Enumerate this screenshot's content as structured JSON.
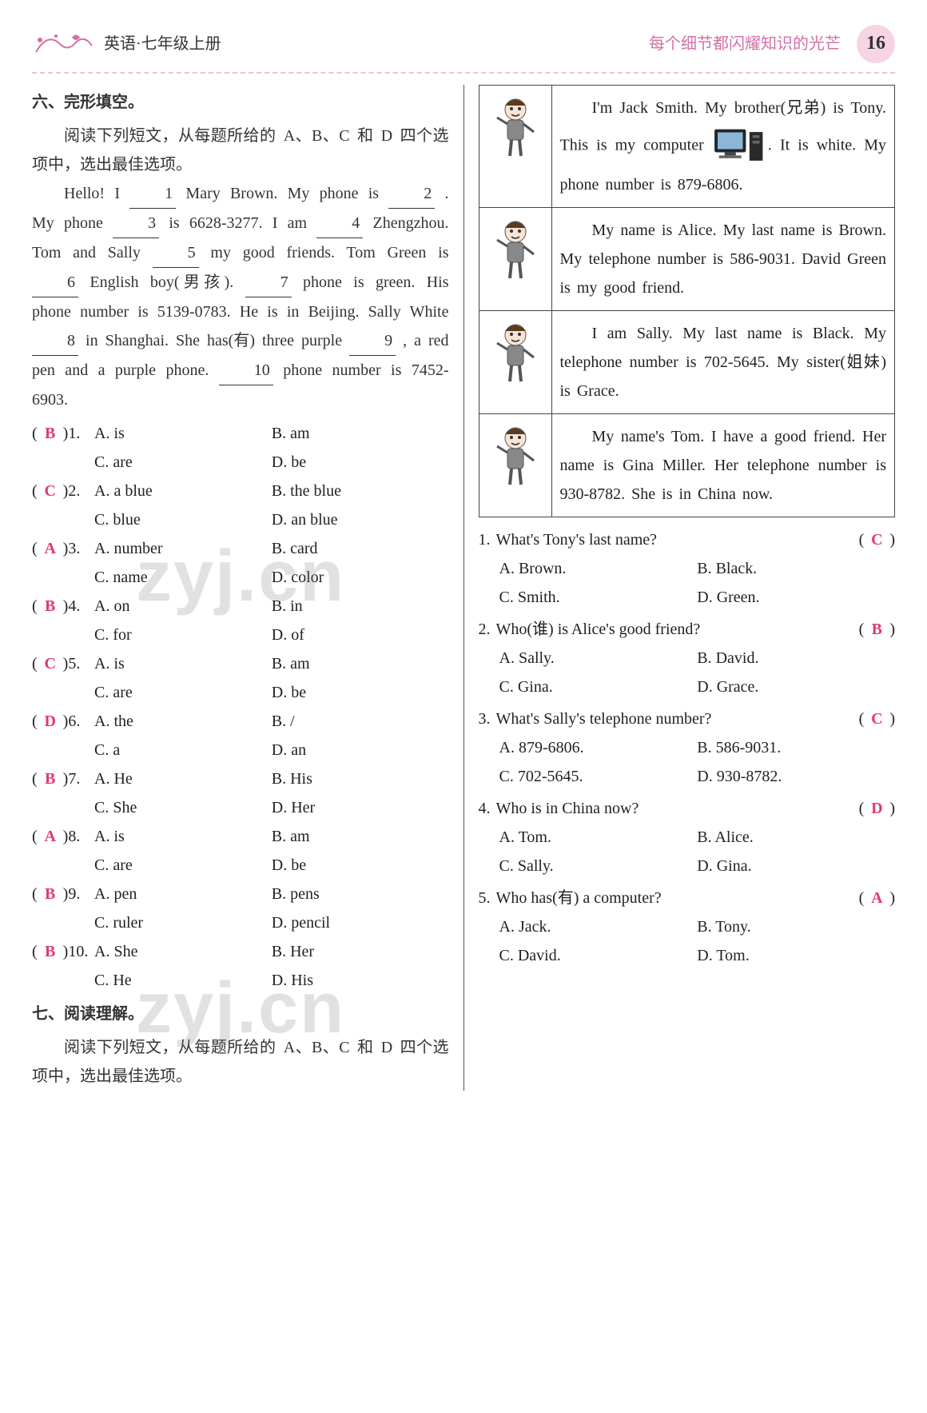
{
  "header": {
    "title": "英语·七年级上册",
    "slogan": "每个细节都闪耀知识的光芒",
    "page_number": "16",
    "flourish_color": "#d46fa9",
    "dash_color": "#efc1d8",
    "badge_bg": "#f6d4e4"
  },
  "answer_color": "#e23a6e",
  "watermark_text": "zyj.cn",
  "cloze": {
    "section_title": "六、完形填空。",
    "directions": "阅读下列短文，从每题所给的 A、B、C 和 D 四个选项中，选出最佳选项。",
    "passage_prefix": "Hello! I ",
    "passage_parts": {
      "p1a": "Hello! I ",
      "b1": "1",
      "p1b": " Mary Brown. My phone is ",
      "b2": "2",
      "p2a": ". My phone ",
      "b3": "3",
      "p2b": " is 6628-3277. I am ",
      "b4": "4",
      "p3a": " Zhengzhou. Tom and Sally ",
      "b5": "5",
      "p3b": " my good friends. Tom Green is ",
      "b6": "6",
      "p3c": " English boy(男孩). ",
      "b7": "7",
      "p4a": " phone is green. His phone number is 5139-0783. He is in Beijing. Sally White ",
      "b8": "8",
      "p4b": " in Shanghai. She has(有) three purple ",
      "b9": "9",
      "p4c": ", a red pen and a purple phone. ",
      "b10": "10",
      "p4d": " phone number is 7452-6903."
    },
    "questions": [
      {
        "answer": "B",
        "num": "1",
        "A": "A. is",
        "B": "B. am",
        "C": "C. are",
        "D": "D. be"
      },
      {
        "answer": "C",
        "num": "2",
        "A": "A. a blue",
        "B": "B. the blue",
        "C": "C. blue",
        "D": "D. an blue"
      },
      {
        "answer": "A",
        "num": "3",
        "A": "A. number",
        "B": "B. card",
        "C": "C. name",
        "D": "D. color"
      },
      {
        "answer": "B",
        "num": "4",
        "A": "A. on",
        "B": "B. in",
        "C": "C. for",
        "D": "D. of"
      },
      {
        "answer": "C",
        "num": "5",
        "A": "A. is",
        "B": "B. am",
        "C": "C. are",
        "D": "D. be"
      },
      {
        "answer": "D",
        "num": "6",
        "A": "A. the",
        "B": "B. /",
        "C": "C. a",
        "D": "D. an"
      },
      {
        "answer": "B",
        "num": "7",
        "A": "A. He",
        "B": "B. His",
        "C": "C. She",
        "D": "D. Her"
      },
      {
        "answer": "A",
        "num": "8",
        "A": "A. is",
        "B": "B. am",
        "C": "C. are",
        "D": "D. be"
      },
      {
        "answer": "B",
        "num": "9",
        "A": "A. pen",
        "B": "B. pens",
        "C": "C. ruler",
        "D": "D. pencil"
      },
      {
        "answer": "B",
        "num": "10",
        "A": "A. She",
        "B": "B. Her",
        "C": "C. He",
        "D": "D. His"
      }
    ]
  },
  "reading": {
    "section_title": "七、阅读理解。",
    "directions": "阅读下列短文，从每题所给的 A、B、C 和 D 四个选项中，选出最佳选项。",
    "passages": [
      {
        "icon": "boy-waving-icon",
        "text_pre": "I'm Jack Smith. My brother(兄弟) is Tony. This is my computer ",
        "text_post": ". It is white. My phone number is 879-6806.",
        "has_computer_image": true
      },
      {
        "icon": "girl-waving-icon",
        "text": "My name is Alice. My last name is Brown. My telephone number is 586-9031. David Green is my good friend."
      },
      {
        "icon": "girl-blonde-icon",
        "text": "I am Sally. My last name is Black. My telephone number is 702-5645. My sister(姐妹) is Grace."
      },
      {
        "icon": "boy-standing-icon",
        "text": "My name's Tom. I have a good friend. Her name is Gina Miller. Her telephone number is 930-8782. She is in China now."
      }
    ],
    "questions": [
      {
        "num": "1",
        "q": "What's Tony's last name?",
        "answer": "C",
        "A": "A. Brown.",
        "B": "B. Black.",
        "C": "C. Smith.",
        "D": "D. Green."
      },
      {
        "num": "2",
        "q": "Who(谁) is Alice's good friend?",
        "answer": "B",
        "A": "A. Sally.",
        "B": "B. David.",
        "C": "C. Gina.",
        "D": "D. Grace."
      },
      {
        "num": "3",
        "q": "What's Sally's telephone number?",
        "answer": "C",
        "A": "A. 879-6806.",
        "B": "B. 586-9031.",
        "C": "C. 702-5645.",
        "D": "D. 930-8782."
      },
      {
        "num": "4",
        "q": "Who is in China now?",
        "answer": "D",
        "A": "A. Tom.",
        "B": "B. Alice.",
        "C": "C. Sally.",
        "D": "D. Gina."
      },
      {
        "num": "5",
        "q": "Who has(有) a computer?",
        "answer": "A",
        "A": "A. Jack.",
        "B": "B. Tony.",
        "C": "C. David.",
        "D": "D. Tom."
      }
    ]
  }
}
